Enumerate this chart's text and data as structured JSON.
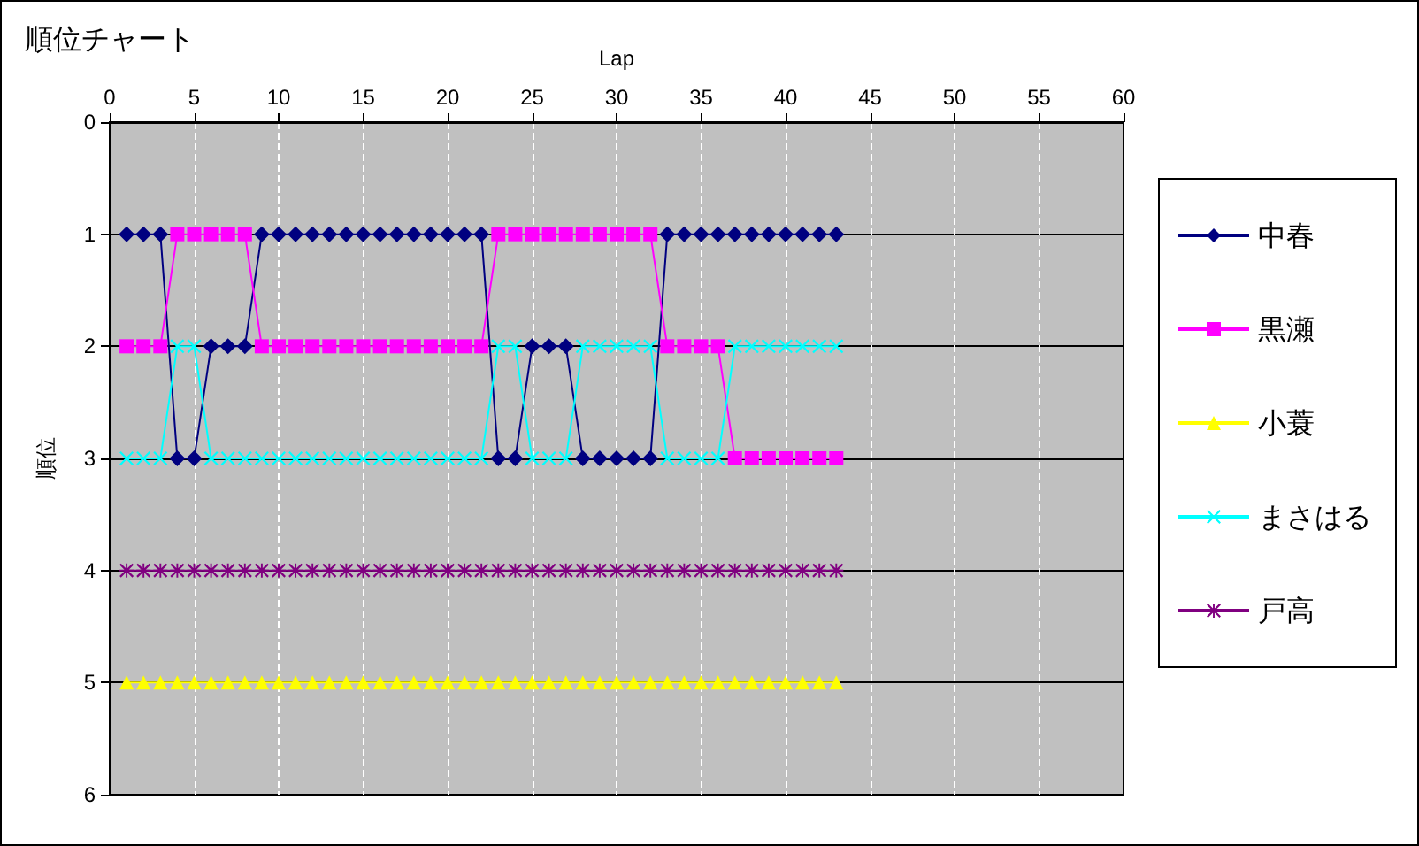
{
  "chart_data": {
    "type": "line",
    "title": "順位チャート",
    "xlabel": "Lap",
    "ylabel": "順位",
    "x": [
      1,
      2,
      3,
      4,
      5,
      6,
      7,
      8,
      9,
      10,
      11,
      12,
      13,
      14,
      15,
      16,
      17,
      18,
      19,
      20,
      21,
      22,
      23,
      24,
      25,
      26,
      27,
      28,
      29,
      30,
      31,
      32,
      33,
      34,
      35,
      36,
      37,
      38,
      39,
      40,
      41,
      42,
      43
    ],
    "series": [
      {
        "name": "中春",
        "color": "#000080",
        "marker": "diamond",
        "values": [
          1,
          1,
          1,
          3,
          3,
          2,
          2,
          2,
          1,
          1,
          1,
          1,
          1,
          1,
          1,
          1,
          1,
          1,
          1,
          1,
          1,
          1,
          3,
          3,
          2,
          2,
          2,
          3,
          3,
          3,
          3,
          3,
          1,
          1,
          1,
          1,
          1,
          1,
          1,
          1,
          1,
          1,
          1
        ]
      },
      {
        "name": "黒瀬",
        "color": "#ff00ff",
        "marker": "square",
        "values": [
          2,
          2,
          2,
          1,
          1,
          1,
          1,
          1,
          2,
          2,
          2,
          2,
          2,
          2,
          2,
          2,
          2,
          2,
          2,
          2,
          2,
          2,
          1,
          1,
          1,
          1,
          1,
          1,
          1,
          1,
          1,
          1,
          2,
          2,
          2,
          2,
          3,
          3,
          3,
          3,
          3,
          3,
          3
        ]
      },
      {
        "name": "小蓑",
        "color": "#ffff00",
        "marker": "triangle",
        "values": [
          5,
          5,
          5,
          5,
          5,
          5,
          5,
          5,
          5,
          5,
          5,
          5,
          5,
          5,
          5,
          5,
          5,
          5,
          5,
          5,
          5,
          5,
          5,
          5,
          5,
          5,
          5,
          5,
          5,
          5,
          5,
          5,
          5,
          5,
          5,
          5,
          5,
          5,
          5,
          5,
          5,
          5,
          5
        ]
      },
      {
        "name": "まさはる",
        "color": "#00ffff",
        "marker": "cross",
        "values": [
          3,
          3,
          3,
          2,
          2,
          3,
          3,
          3,
          3,
          3,
          3,
          3,
          3,
          3,
          3,
          3,
          3,
          3,
          3,
          3,
          3,
          3,
          2,
          2,
          3,
          3,
          3,
          2,
          2,
          2,
          2,
          2,
          3,
          3,
          3,
          3,
          2,
          2,
          2,
          2,
          2,
          2,
          2
        ]
      },
      {
        "name": "戸高",
        "color": "#800080",
        "marker": "star",
        "values": [
          4,
          4,
          4,
          4,
          4,
          4,
          4,
          4,
          4,
          4,
          4,
          4,
          4,
          4,
          4,
          4,
          4,
          4,
          4,
          4,
          4,
          4,
          4,
          4,
          4,
          4,
          4,
          4,
          4,
          4,
          4,
          4,
          4,
          4,
          4,
          4,
          4,
          4,
          4,
          4,
          4,
          4,
          4
        ]
      }
    ],
    "xlim": [
      0,
      60
    ],
    "xticks": [
      0,
      5,
      10,
      15,
      20,
      25,
      30,
      35,
      40,
      45,
      50,
      55,
      60
    ],
    "ylim": [
      6,
      0
    ],
    "yticks": [
      0,
      1,
      2,
      3,
      4,
      5,
      6
    ],
    "grid": true,
    "legend": "right",
    "line_style": "solid"
  }
}
